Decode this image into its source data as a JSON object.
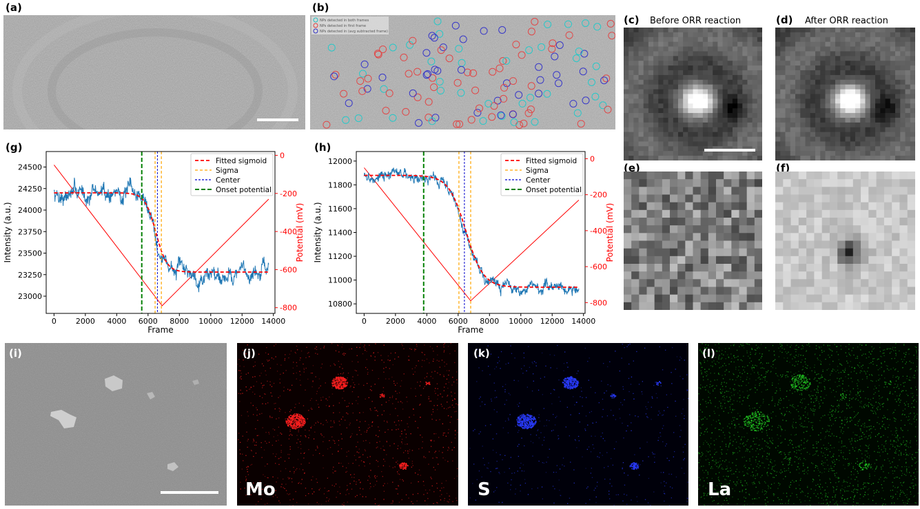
{
  "panels": {
    "a": {
      "label": "(a)"
    },
    "b": {
      "label": "(b)",
      "legend": [
        "NPs detected in both frames",
        "NPs detected in first frame",
        "NPs detected in (avg subtracted frame)"
      ]
    },
    "c": {
      "label": "(c)",
      "title": "Before ORR reaction"
    },
    "d": {
      "label": "(d)",
      "title": "After ORR reaction"
    },
    "e": {
      "label": "(e)"
    },
    "f": {
      "label": "(f)"
    },
    "g": {
      "label": "(g)"
    },
    "h": {
      "label": "(h)"
    },
    "i": {
      "label": "(i)"
    },
    "j": {
      "label": "(j)",
      "element": "Mo"
    },
    "k": {
      "label": "(k)",
      "element": "S"
    },
    "l": {
      "label": "(l)",
      "element": "La"
    }
  },
  "colors": {
    "intensity": "#1f77b4",
    "fit": "#ff0000",
    "potential": "#ff0000",
    "sigma": "#ffa500",
    "center": "#0000cd",
    "onset": "#008000",
    "mo": "#ff2020",
    "s": "#2a3cff",
    "la": "#20c020"
  },
  "chart_data": [
    {
      "panel": "g",
      "type": "line",
      "xlabel": "Frame",
      "ylabel": "Intensity (a.u.)",
      "y2label": "Potential (mV)",
      "xlim": [
        -500,
        14100
      ],
      "ylim": [
        22800,
        24680
      ],
      "y2lim": [
        -830,
        20
      ],
      "xticks": [
        0,
        2000,
        4000,
        6000,
        8000,
        10000,
        12000,
        14000
      ],
      "xtick_labels": [
        "0",
        "2000",
        "4000",
        "6000",
        "8000",
        "10000",
        "12000",
        "14000"
      ],
      "yticks": [
        23000,
        23250,
        23500,
        23750,
        24000,
        24250,
        24500
      ],
      "ytick_labels": [
        "23000",
        "23250",
        "23500",
        "23750",
        "24000",
        "24250",
        "24500"
      ],
      "y2ticks": [
        0,
        -200,
        -400,
        -600,
        -800
      ],
      "y2tick_labels": [
        "0",
        "-200",
        "-400",
        "-600",
        "-800"
      ],
      "legend": [
        "Fitted sigmoid",
        "Sigma",
        "Center",
        "Onset potential"
      ],
      "legend_position": "top-right",
      "sigmoid": {
        "top": 24200,
        "bottom": 23280,
        "center": 6500,
        "width": 350
      },
      "noise": {
        "mean_amplitude": 150,
        "seed": 7
      },
      "potential": {
        "x": [
          0,
          6900,
          13700
        ],
        "y": [
          -50,
          -790,
          -230
        ]
      },
      "vlines": {
        "onset": 5600,
        "sigma": [
          6450,
          6850
        ],
        "center": 6600
      }
    },
    {
      "panel": "h",
      "type": "line",
      "xlabel": "Frame",
      "ylabel": "Intensity (a.u.)",
      "y2label": "Potential (mV)",
      "xlim": [
        -500,
        14100
      ],
      "ylim": [
        10720,
        12080
      ],
      "y2lim": [
        -860,
        40
      ],
      "xticks": [
        0,
        2000,
        4000,
        6000,
        8000,
        10000,
        12000,
        14000
      ],
      "xtick_labels": [
        "0",
        "2000",
        "4000",
        "6000",
        "8000",
        "10000",
        "12000",
        "14000"
      ],
      "yticks": [
        10800,
        11000,
        11200,
        11400,
        11600,
        11800,
        12000
      ],
      "ytick_labels": [
        "10800",
        "11000",
        "11200",
        "11400",
        "11600",
        "11800",
        "12000"
      ],
      "y2ticks": [
        0,
        -200,
        -400,
        -600,
        -800
      ],
      "y2tick_labels": [
        "0",
        "-200",
        "-400",
        "-600",
        "-800"
      ],
      "legend": [
        "Fitted sigmoid",
        "Sigma",
        "Center",
        "Onset potential"
      ],
      "legend_position": "top-right",
      "sigmoid": {
        "top": 11880,
        "bottom": 10940,
        "center": 6500,
        "width": 550
      },
      "noise": {
        "mean_amplitude": 70,
        "seed": 3
      },
      "potential": {
        "x": [
          0,
          6800,
          13700
        ],
        "y": [
          -50,
          -790,
          -230
        ]
      },
      "vlines": {
        "onset": 3800,
        "sigma": [
          6050,
          6800
        ],
        "center": 6400
      }
    }
  ]
}
